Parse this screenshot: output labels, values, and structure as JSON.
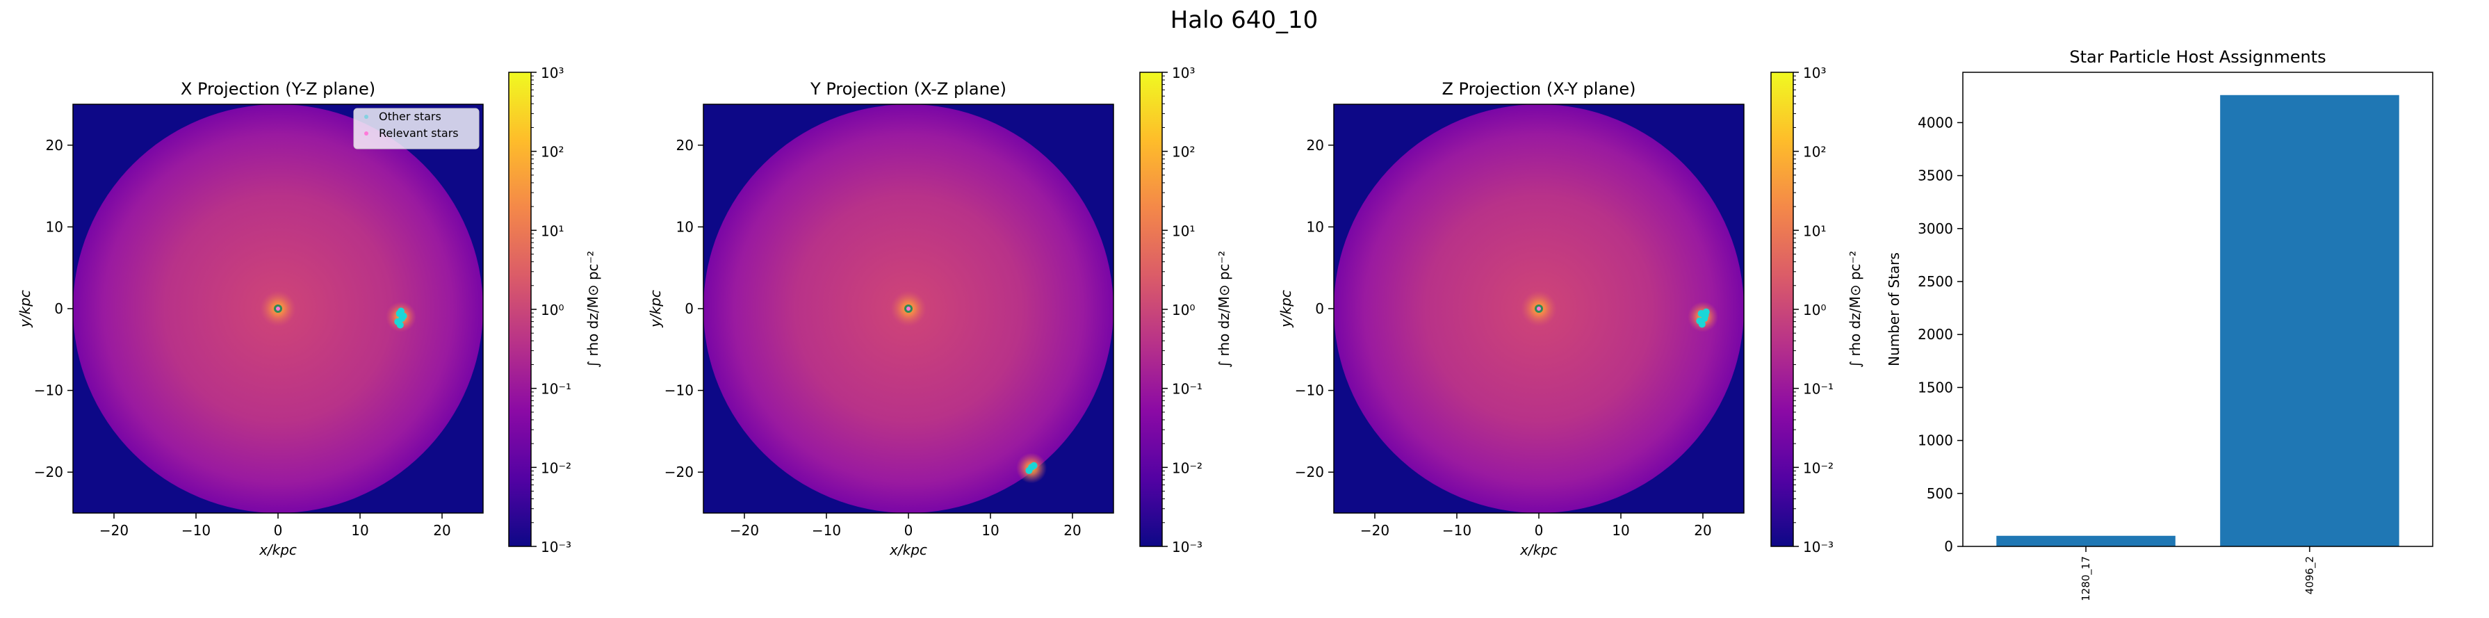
{
  "figure": {
    "suptitle": "Halo 640_10"
  },
  "colors": {
    "bar": "#1f77b4",
    "relevant_stars": "#ff7ad9",
    "other_stars": "#1ad7d7",
    "cmap": [
      "#0d0887",
      "#5302a3",
      "#8b0aa5",
      "#b83289",
      "#db5c68",
      "#f48849",
      "#febd2a",
      "#f0f921"
    ]
  },
  "chart_data": [
    {
      "type": "heatmap",
      "title": "X Projection (Y-Z plane)",
      "xlabel": "x/kpc",
      "ylabel": "y/kpc",
      "xlim": [
        -25,
        25
      ],
      "ylim": [
        -25,
        25
      ],
      "xticks": [
        -20,
        -10,
        0,
        10,
        20
      ],
      "yticks": [
        -20,
        -10,
        0,
        10,
        20
      ],
      "xtick_labels": [
        "−20",
        "−10",
        "0",
        "10",
        "20"
      ],
      "ytick_labels": [
        "−20",
        "−10",
        "0",
        "10",
        "20"
      ],
      "colorbar": {
        "label": "∫ rho dz/M⊙ pc⁻²",
        "scale": "log",
        "range": [
          0.001,
          1000
        ],
        "ticks": [
          -3,
          -2,
          -1,
          0,
          1,
          2,
          3
        ],
        "tick_labels": [
          "10⁻³",
          "10⁻²",
          "10⁻¹",
          "10⁰",
          "10¹",
          "10²",
          "10³"
        ]
      },
      "legend": {
        "position": "upper-right",
        "entries": [
          "Other stars",
          "Relevant stars"
        ]
      },
      "features": {
        "disk_radius": 25,
        "main_host": [
          0,
          0
        ],
        "satellite": [
          15,
          -1
        ],
        "satellite_stars": [
          [
            14.8,
            -0.6
          ],
          [
            15.1,
            -1.2
          ],
          [
            14.6,
            -1.6
          ],
          [
            15.3,
            -0.9
          ],
          [
            14.9,
            -2.0
          ],
          [
            15.0,
            -0.3
          ]
        ]
      }
    },
    {
      "type": "heatmap",
      "title": "Y Projection (X-Z plane)",
      "xlabel": "x/kpc",
      "ylabel": "y/kpc",
      "xlim": [
        -25,
        25
      ],
      "ylim": [
        -25,
        25
      ],
      "xticks": [
        -20,
        -10,
        0,
        10,
        20
      ],
      "yticks": [
        -20,
        -10,
        0,
        10,
        20
      ],
      "xtick_labels": [
        "−20",
        "−10",
        "0",
        "10",
        "20"
      ],
      "ytick_labels": [
        "−20",
        "−10",
        "0",
        "10",
        "20"
      ],
      "colorbar": {
        "label": "∫ rho dz/M⊙ pc⁻²",
        "scale": "log",
        "range": [
          0.001,
          1000
        ],
        "ticks": [
          -3,
          -2,
          -1,
          0,
          1,
          2,
          3
        ],
        "tick_labels": [
          "10⁻³",
          "10⁻²",
          "10⁻¹",
          "10⁰",
          "10¹",
          "10²",
          "10³"
        ]
      },
      "features": {
        "disk_radius": 25,
        "main_host": [
          0,
          0
        ],
        "satellite": [
          15,
          -19.5
        ],
        "satellite_stars": [
          [
            15.0,
            -19.4
          ],
          [
            14.7,
            -19.8
          ],
          [
            15.3,
            -19.2
          ]
        ]
      }
    },
    {
      "type": "heatmap",
      "title": "Z Projection (X-Y plane)",
      "xlabel": "x/kpc",
      "ylabel": "y/kpc",
      "xlim": [
        -25,
        25
      ],
      "ylim": [
        -25,
        25
      ],
      "xticks": [
        -20,
        -10,
        0,
        10,
        20
      ],
      "yticks": [
        -20,
        -10,
        0,
        10,
        20
      ],
      "xtick_labels": [
        "−20",
        "−10",
        "0",
        "10",
        "20"
      ],
      "ytick_labels": [
        "−20",
        "−10",
        "0",
        "10",
        "20"
      ],
      "colorbar": {
        "label": "∫ rho dz/M⊙ pc⁻²",
        "scale": "log",
        "range": [
          0.001,
          1000
        ],
        "ticks": [
          -3,
          -2,
          -1,
          0,
          1,
          2,
          3
        ],
        "tick_labels": [
          "10⁻³",
          "10⁻²",
          "10⁻¹",
          "10⁰",
          "10¹",
          "10²",
          "10³"
        ]
      },
      "features": {
        "disk_radius": 25,
        "main_host": [
          0,
          0
        ],
        "satellite": [
          20,
          -1
        ],
        "satellite_stars": [
          [
            19.8,
            -0.6
          ],
          [
            20.2,
            -1.2
          ],
          [
            19.6,
            -1.5
          ],
          [
            20.3,
            -0.8
          ],
          [
            19.9,
            -1.9
          ],
          [
            20.4,
            -0.4
          ]
        ]
      }
    },
    {
      "type": "bar",
      "title": "Star Particle Host Assignments",
      "xlabel": "",
      "ylabel": "Number of Stars",
      "categories": [
        "1280_17",
        "4096_2"
      ],
      "values": [
        100,
        4260
      ],
      "ylim": [
        0,
        4475
      ],
      "yticks": [
        0,
        500,
        1000,
        1500,
        2000,
        2500,
        3000,
        3500,
        4000
      ],
      "ytick_labels": [
        "0",
        "500",
        "1000",
        "1500",
        "2000",
        "2500",
        "3000",
        "3500",
        "4000"
      ]
    }
  ]
}
